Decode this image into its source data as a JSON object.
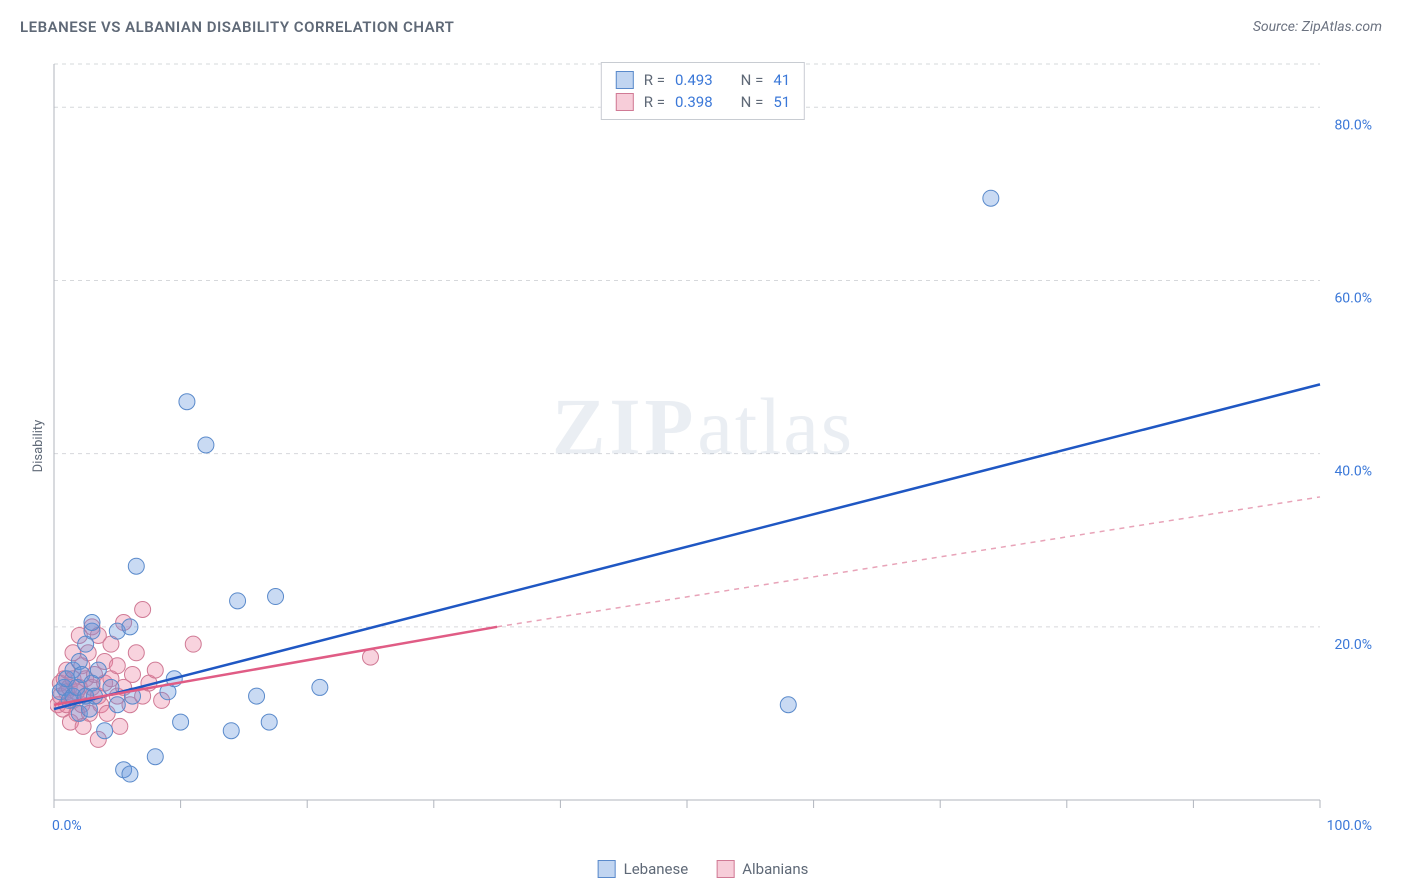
{
  "header": {
    "title": "LEBANESE VS ALBANIAN DISABILITY CORRELATION CHART",
    "source": "Source: ZipAtlas.com"
  },
  "watermark": {
    "bold": "ZIP",
    "light": "atlas"
  },
  "chart": {
    "type": "scatter",
    "y_label": "Disability",
    "background_color": "#ffffff",
    "grid_color": "#d6d8db",
    "axis_color": "#b0b5bd",
    "xlim": [
      0,
      100
    ],
    "ylim": [
      0,
      85
    ],
    "x_ticks": [
      0,
      10,
      20,
      30,
      40,
      50,
      60,
      70,
      80,
      90,
      100
    ],
    "x_tick_labels": {
      "0": "0.0%",
      "100": "100.0%"
    },
    "y_ticks": [
      20,
      40,
      60,
      80
    ],
    "y_tick_labels": {
      "20": "20.0%",
      "40": "40.0%",
      "60": "60.0%",
      "80": "80.0%"
    },
    "marker_radius": 8,
    "series": [
      {
        "name": "Lebanese",
        "color_fill": "rgba(99,150,220,0.35)",
        "color_stroke": "#5a8acb",
        "trend_color": "#1f57c3",
        "R": "0.493",
        "N": "41",
        "trend": {
          "x0": 0,
          "y0": 10.5,
          "x1": 100,
          "y1": 48
        },
        "points": [
          [
            0.5,
            12.5
          ],
          [
            0.8,
            13
          ],
          [
            1,
            14
          ],
          [
            1.2,
            11.5
          ],
          [
            1.5,
            12
          ],
          [
            1.5,
            15
          ],
          [
            1.8,
            13
          ],
          [
            2,
            10
          ],
          [
            2,
            16
          ],
          [
            2.2,
            14.5
          ],
          [
            2.5,
            12
          ],
          [
            2.5,
            18
          ],
          [
            2.8,
            10.5
          ],
          [
            3,
            13.5
          ],
          [
            3,
            19.5
          ],
          [
            3,
            20.5
          ],
          [
            3.2,
            12
          ],
          [
            3.5,
            15
          ],
          [
            4,
            8
          ],
          [
            4.5,
            13
          ],
          [
            5,
            11
          ],
          [
            5,
            19.5
          ],
          [
            5.5,
            3.5
          ],
          [
            6,
            3
          ],
          [
            6,
            20
          ],
          [
            6.2,
            12
          ],
          [
            6.5,
            27
          ],
          [
            8,
            5
          ],
          [
            9,
            12.5
          ],
          [
            9.5,
            14
          ],
          [
            10,
            9
          ],
          [
            10.5,
            46
          ],
          [
            12,
            41
          ],
          [
            14,
            8
          ],
          [
            14.5,
            23
          ],
          [
            16,
            12
          ],
          [
            17,
            9
          ],
          [
            17.5,
            23.5
          ],
          [
            21,
            13
          ],
          [
            58,
            11
          ],
          [
            74,
            69.5
          ]
        ]
      },
      {
        "name": "Albanians",
        "color_fill": "rgba(235,130,160,0.35)",
        "color_stroke": "#d07a95",
        "trend_color": "#e05c85",
        "trend_dash_color": "#e8a3b8",
        "R": "0.398",
        "N": "51",
        "trend": {
          "x0": 0,
          "y0": 11,
          "x1": 35,
          "y1": 20,
          "x2": 100,
          "y2": 35
        },
        "points": [
          [
            0.3,
            11
          ],
          [
            0.5,
            12
          ],
          [
            0.5,
            13.5
          ],
          [
            0.7,
            10.5
          ],
          [
            0.8,
            14
          ],
          [
            1,
            11
          ],
          [
            1,
            12.5
          ],
          [
            1,
            15
          ],
          [
            1.2,
            13
          ],
          [
            1.3,
            9
          ],
          [
            1.5,
            11.5
          ],
          [
            1.5,
            14
          ],
          [
            1.5,
            17
          ],
          [
            1.8,
            10
          ],
          [
            1.8,
            12.5
          ],
          [
            2,
            13
          ],
          [
            2,
            19
          ],
          [
            2.2,
            11
          ],
          [
            2.2,
            15.5
          ],
          [
            2.3,
            8.5
          ],
          [
            2.5,
            12
          ],
          [
            2.5,
            14
          ],
          [
            2.7,
            17
          ],
          [
            2.8,
            10
          ],
          [
            3,
            13
          ],
          [
            3,
            20
          ],
          [
            3.2,
            14.5
          ],
          [
            3.5,
            7
          ],
          [
            3.5,
            12
          ],
          [
            3.5,
            19
          ],
          [
            3.7,
            11
          ],
          [
            4,
            13.5
          ],
          [
            4,
            16
          ],
          [
            4.2,
            10
          ],
          [
            4.5,
            14
          ],
          [
            4.5,
            18
          ],
          [
            5,
            12
          ],
          [
            5,
            15.5
          ],
          [
            5.2,
            8.5
          ],
          [
            5.5,
            13
          ],
          [
            5.5,
            20.5
          ],
          [
            6,
            11
          ],
          [
            6.2,
            14.5
          ],
          [
            6.5,
            17
          ],
          [
            7,
            12
          ],
          [
            7,
            22
          ],
          [
            7.5,
            13.5
          ],
          [
            8,
            15
          ],
          [
            8.5,
            11.5
          ],
          [
            11,
            18
          ],
          [
            25,
            16.5
          ]
        ]
      }
    ]
  },
  "legend_bottom": [
    {
      "label": "Lebanese",
      "swatch": "blue"
    },
    {
      "label": "Albanians",
      "swatch": "pink"
    }
  ]
}
